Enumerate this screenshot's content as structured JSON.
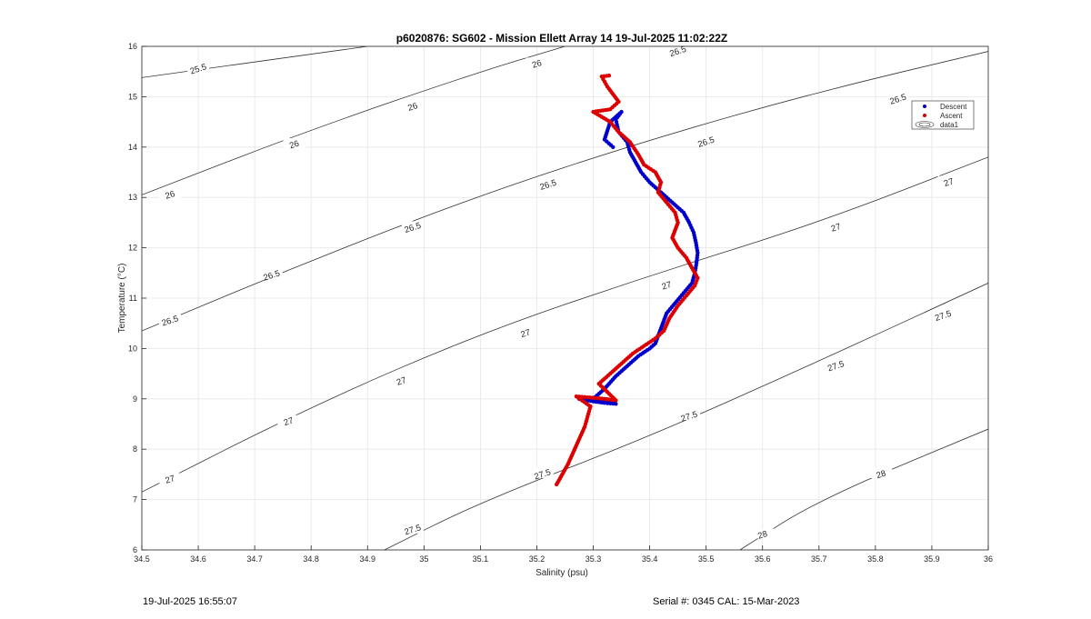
{
  "chart_data": {
    "type": "scatter",
    "title": "p6020876: SG602 - Mission Ellett Array 14 19-Jul-2025 11:02:22Z",
    "xlabel": "Salinity (psu)",
    "ylabel": "Temperature (°C)",
    "xlim": [
      34.5,
      36
    ],
    "ylim": [
      6,
      16
    ],
    "xticks": [
      "34.5",
      "34.6",
      "34.7",
      "34.8",
      "34.9",
      "35",
      "35.1",
      "35.2",
      "35.3",
      "35.4",
      "35.5",
      "35.6",
      "35.7",
      "35.8",
      "35.9",
      "36"
    ],
    "yticks": [
      "6",
      "7",
      "8",
      "9",
      "10",
      "11",
      "12",
      "13",
      "14",
      "15",
      "16"
    ],
    "grid": true,
    "legend_position": "top-right",
    "legend": [
      {
        "label": "Descent",
        "color": "#0000cc",
        "marker": "dot"
      },
      {
        "label": "Ascent",
        "color": "#dd0000",
        "marker": "dot"
      },
      {
        "label": "data1",
        "color": "#333333",
        "marker": "contour"
      }
    ],
    "series": [
      {
        "name": "Descent",
        "color": "#0000cc",
        "points": [
          [
            35.275,
            9.0
          ],
          [
            35.3,
            8.95
          ],
          [
            35.32,
            8.92
          ],
          [
            35.34,
            8.9
          ],
          [
            35.3,
            9.0
          ],
          [
            35.32,
            9.2
          ],
          [
            35.34,
            9.45
          ],
          [
            35.36,
            9.65
          ],
          [
            35.38,
            9.85
          ],
          [
            35.4,
            10.0
          ],
          [
            35.41,
            10.1
          ],
          [
            35.42,
            10.4
          ],
          [
            35.43,
            10.7
          ],
          [
            35.445,
            10.9
          ],
          [
            35.46,
            11.1
          ],
          [
            35.475,
            11.3
          ],
          [
            35.48,
            11.5
          ],
          [
            35.483,
            11.7
          ],
          [
            35.485,
            11.9
          ],
          [
            35.482,
            12.1
          ],
          [
            35.478,
            12.3
          ],
          [
            35.47,
            12.5
          ],
          [
            35.46,
            12.7
          ],
          [
            35.44,
            12.9
          ],
          [
            35.42,
            13.1
          ],
          [
            35.4,
            13.3
          ],
          [
            35.385,
            13.5
          ],
          [
            35.375,
            13.7
          ],
          [
            35.365,
            13.9
          ],
          [
            35.36,
            14.1
          ],
          [
            35.345,
            14.3
          ],
          [
            35.34,
            14.55
          ],
          [
            35.35,
            14.7
          ],
          [
            35.33,
            14.5
          ],
          [
            35.32,
            14.15
          ],
          [
            35.335,
            14.0
          ]
        ]
      },
      {
        "name": "Ascent",
        "color": "#dd0000",
        "points": [
          [
            35.235,
            7.3
          ],
          [
            35.245,
            7.5
          ],
          [
            35.255,
            7.7
          ],
          [
            35.265,
            7.95
          ],
          [
            35.275,
            8.2
          ],
          [
            35.285,
            8.45
          ],
          [
            35.29,
            8.65
          ],
          [
            35.295,
            8.85
          ],
          [
            35.27,
            9.05
          ],
          [
            35.29,
            9.03
          ],
          [
            35.32,
            9.0
          ],
          [
            35.34,
            8.97
          ],
          [
            35.31,
            9.3
          ],
          [
            35.33,
            9.5
          ],
          [
            35.35,
            9.7
          ],
          [
            35.37,
            9.9
          ],
          [
            35.39,
            10.05
          ],
          [
            35.41,
            10.2
          ],
          [
            35.425,
            10.35
          ],
          [
            35.435,
            10.6
          ],
          [
            35.45,
            10.85
          ],
          [
            35.465,
            11.05
          ],
          [
            35.48,
            11.25
          ],
          [
            35.485,
            11.4
          ],
          [
            35.475,
            11.6
          ],
          [
            35.465,
            11.8
          ],
          [
            35.45,
            12.0
          ],
          [
            35.44,
            12.2
          ],
          [
            35.45,
            12.5
          ],
          [
            35.445,
            12.7
          ],
          [
            35.43,
            12.9
          ],
          [
            35.415,
            13.1
          ],
          [
            35.42,
            13.3
          ],
          [
            35.41,
            13.5
          ],
          [
            35.39,
            13.65
          ],
          [
            35.38,
            13.85
          ],
          [
            35.365,
            14.1
          ],
          [
            35.345,
            14.3
          ],
          [
            35.33,
            14.5
          ],
          [
            35.3,
            14.7
          ],
          [
            35.33,
            14.75
          ],
          [
            35.345,
            14.9
          ],
          [
            35.335,
            15.05
          ],
          [
            35.325,
            15.2
          ],
          [
            35.32,
            15.3
          ],
          [
            35.315,
            15.4
          ],
          [
            35.328,
            15.42
          ]
        ]
      }
    ],
    "contours": [
      {
        "label": "25.5",
        "points": [
          [
            34.5,
            15.38
          ],
          [
            34.9,
            16.0
          ]
        ],
        "labels_at": [
          0.12
        ]
      },
      {
        "label": "26",
        "points": [
          [
            34.5,
            13.05
          ],
          [
            34.8,
            14.35
          ],
          [
            35.1,
            15.5
          ],
          [
            35.25,
            16.0
          ]
        ],
        "labels_at": [
          0.1,
          0.32,
          0.6,
          0.85
        ]
      },
      {
        "label": "26",
        "points": [
          [
            35.97,
            16.0
          ],
          [
            35.97,
            16.0
          ]
        ],
        "labels_at": []
      },
      {
        "label": "26.5",
        "points": [
          [
            34.5,
            10.35
          ],
          [
            34.8,
            11.75
          ],
          [
            35.1,
            13.05
          ],
          [
            35.4,
            14.15
          ],
          [
            35.7,
            15.1
          ],
          [
            36.0,
            15.9
          ]
        ],
        "labels_at": [
          0.04,
          0.22,
          0.38,
          0.55,
          0.7,
          0.93
        ]
      },
      {
        "label": "27",
        "points": [
          [
            34.5,
            7.15
          ],
          [
            34.8,
            8.85
          ],
          [
            35.1,
            10.3
          ],
          [
            35.4,
            11.45
          ],
          [
            35.7,
            12.5
          ],
          [
            36.0,
            13.8
          ]
        ],
        "labels_at": [
          0.04,
          0.2,
          0.39,
          0.6,
          0.78,
          0.92
        ]
      },
      {
        "label": "27.5",
        "points": [
          [
            34.93,
            6.0
          ],
          [
            35.1,
            6.95
          ],
          [
            35.4,
            8.25
          ],
          [
            35.7,
            9.75
          ],
          [
            36.0,
            11.3
          ]
        ],
        "labels_at": [
          0.06,
          0.22,
          0.43,
          0.65,
          0.85
        ]
      },
      {
        "label": "28",
        "points": [
          [
            35.56,
            6.0
          ],
          [
            35.7,
            7.0
          ],
          [
            36.0,
            8.4
          ]
        ],
        "labels_at": [
          0.08,
          0.53
        ]
      }
    ],
    "contour_labels": [
      {
        "text": "25.5",
        "x": 34.6,
        "y": 15.55
      },
      {
        "text": "26",
        "x": 34.55,
        "y": 13.05
      },
      {
        "text": "26",
        "x": 34.77,
        "y": 14.05
      },
      {
        "text": "26",
        "x": 34.98,
        "y": 14.8
      },
      {
        "text": "26",
        "x": 35.2,
        "y": 15.65
      },
      {
        "text": "26.5",
        "x": 35.45,
        "y": 15.9
      },
      {
        "text": "26.5",
        "x": 34.55,
        "y": 10.55
      },
      {
        "text": "26.5",
        "x": 34.73,
        "y": 11.45
      },
      {
        "text": "26.5",
        "x": 34.98,
        "y": 12.4
      },
      {
        "text": "26.5",
        "x": 35.22,
        "y": 13.25
      },
      {
        "text": "26.5",
        "x": 35.5,
        "y": 14.1
      },
      {
        "text": "26.5",
        "x": 35.84,
        "y": 14.95
      },
      {
        "text": "27",
        "x": 34.55,
        "y": 7.4
      },
      {
        "text": "27",
        "x": 34.76,
        "y": 8.55
      },
      {
        "text": "27",
        "x": 34.96,
        "y": 9.35
      },
      {
        "text": "27",
        "x": 35.18,
        "y": 10.3
      },
      {
        "text": "27",
        "x": 35.43,
        "y": 11.25
      },
      {
        "text": "27",
        "x": 35.73,
        "y": 12.4
      },
      {
        "text": "27",
        "x": 35.93,
        "y": 13.3
      },
      {
        "text": "27.5",
        "x": 34.98,
        "y": 6.4
      },
      {
        "text": "27.5",
        "x": 35.21,
        "y": 7.5
      },
      {
        "text": "27.5",
        "x": 35.47,
        "y": 8.65
      },
      {
        "text": "27.5",
        "x": 35.73,
        "y": 9.65
      },
      {
        "text": "27.5",
        "x": 35.92,
        "y": 10.65
      },
      {
        "text": "28",
        "x": 35.6,
        "y": 6.3
      },
      {
        "text": "28",
        "x": 35.81,
        "y": 7.5
      }
    ]
  },
  "footer": {
    "timestamp": "19-Jul-2025 16:55:07",
    "serial": "Serial #: 0345  CAL: 15-Mar-2023"
  }
}
